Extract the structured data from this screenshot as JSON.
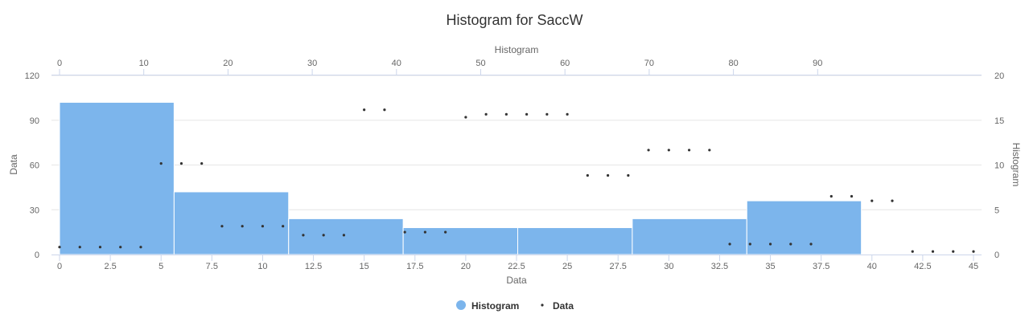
{
  "chart_data": {
    "type": "histogram",
    "title": "Histogram for SaccW",
    "colors": {
      "histogram": "#7cb5ec",
      "data": "#333333"
    },
    "grid": true,
    "legend_position": "bottom-center",
    "axes": {
      "x_bottom": {
        "label": "Data",
        "range": [
          0,
          45
        ],
        "ticks": [
          "0",
          "2.5",
          "5",
          "7.5",
          "10",
          "12.5",
          "15",
          "17.5",
          "20",
          "22.5",
          "25",
          "27.5",
          "30",
          "32.5",
          "35",
          "37.5",
          "40",
          "42.5",
          "45"
        ],
        "tick_values": [
          0,
          2.5,
          5,
          7.5,
          10,
          12.5,
          15,
          17.5,
          20,
          22.5,
          25,
          27.5,
          30,
          32.5,
          35,
          37.5,
          40,
          42.5,
          45
        ]
      },
      "x_top": {
        "label": "Histogram",
        "range": [
          0,
          108.5
        ],
        "ticks": [
          "0",
          "10",
          "20",
          "30",
          "40",
          "50",
          "60",
          "70",
          "80",
          "90"
        ],
        "tick_values": [
          0,
          10,
          20,
          30,
          40,
          50,
          60,
          70,
          80,
          90
        ]
      },
      "y_left": {
        "label": "Data",
        "range": [
          0,
          120
        ],
        "ticks": [
          "0",
          "30",
          "60",
          "90",
          "120"
        ],
        "tick_values": [
          0,
          30,
          60,
          90,
          120
        ]
      },
      "y_right": {
        "label": "Histogram",
        "range": [
          0,
          20
        ],
        "ticks": [
          "0",
          "5",
          "10",
          "15",
          "20"
        ],
        "tick_values": [
          0,
          5,
          10,
          15,
          20
        ]
      }
    },
    "series": [
      {
        "name": "Histogram",
        "type": "column",
        "bins": [
          {
            "x0": 0,
            "x1": 5.64,
            "value": 17
          },
          {
            "x0": 5.64,
            "x1": 11.28,
            "value": 7
          },
          {
            "x0": 11.28,
            "x1": 16.92,
            "value": 4
          },
          {
            "x0": 16.92,
            "x1": 22.56,
            "value": 3
          },
          {
            "x0": 22.56,
            "x1": 28.2,
            "value": 3
          },
          {
            "x0": 28.2,
            "x1": 33.84,
            "value": 4
          },
          {
            "x0": 33.84,
            "x1": 39.48,
            "value": 6
          }
        ]
      },
      {
        "name": "Data",
        "type": "scatter",
        "points": [
          [
            0,
            5
          ],
          [
            1,
            5
          ],
          [
            2,
            5
          ],
          [
            3,
            5
          ],
          [
            4,
            5
          ],
          [
            5,
            61
          ],
          [
            6,
            61
          ],
          [
            7,
            61
          ],
          [
            8,
            19
          ],
          [
            9,
            19
          ],
          [
            10,
            19
          ],
          [
            11,
            19
          ],
          [
            12,
            13
          ],
          [
            13,
            13
          ],
          [
            14,
            13
          ],
          [
            15,
            97
          ],
          [
            16,
            97
          ],
          [
            17,
            15
          ],
          [
            18,
            15
          ],
          [
            19,
            15
          ],
          [
            20,
            92
          ],
          [
            21,
            94
          ],
          [
            22,
            94
          ],
          [
            23,
            94
          ],
          [
            24,
            94
          ],
          [
            25,
            94
          ],
          [
            26,
            53
          ],
          [
            27,
            53
          ],
          [
            28,
            53
          ],
          [
            29,
            70
          ],
          [
            30,
            70
          ],
          [
            31,
            70
          ],
          [
            32,
            70
          ],
          [
            33,
            7
          ],
          [
            34,
            7
          ],
          [
            35,
            7
          ],
          [
            36,
            7
          ],
          [
            37,
            7
          ],
          [
            38,
            39
          ],
          [
            39,
            39
          ],
          [
            40,
            36
          ],
          [
            41,
            36
          ],
          [
            42,
            2
          ],
          [
            43,
            2
          ],
          [
            44,
            2
          ],
          [
            45,
            2
          ]
        ]
      }
    ]
  }
}
